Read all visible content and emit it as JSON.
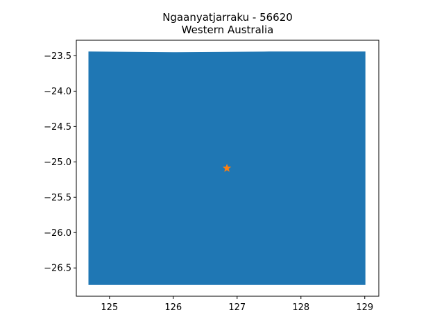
{
  "chart_data": {
    "type": "map",
    "title_lines": [
      "Ngaanyatjarraku - 56620",
      "Western Australia"
    ],
    "xlabel": "",
    "ylabel": "",
    "xlim": [
      124.48,
      129.22
    ],
    "ylim": [
      -26.9,
      -23.28
    ],
    "xticks": [
      125,
      126,
      127,
      128,
      129
    ],
    "yticks": [
      -23.5,
      -24.0,
      -24.5,
      -25.0,
      -25.5,
      -26.0,
      -26.5
    ],
    "xtick_labels": [
      "125",
      "126",
      "127",
      "128",
      "129"
    ],
    "ytick_labels": [
      "−23.5",
      "−24.0",
      "−24.5",
      "−25.0",
      "−25.5",
      "−26.0",
      "−26.5"
    ],
    "grid": false,
    "region": {
      "fill_color": "#1f77b4",
      "polygon": [
        [
          124.67,
          -23.44
        ],
        [
          126.0,
          -23.45
        ],
        [
          127.5,
          -23.44
        ],
        [
          129.01,
          -23.44
        ],
        [
          129.01,
          -26.74
        ],
        [
          127.5,
          -26.74
        ],
        [
          126.0,
          -26.74
        ],
        [
          124.67,
          -26.74
        ]
      ]
    },
    "marker": {
      "shape": "star",
      "color": "#ff7f0e",
      "x": 126.84,
      "y": -25.09
    }
  }
}
